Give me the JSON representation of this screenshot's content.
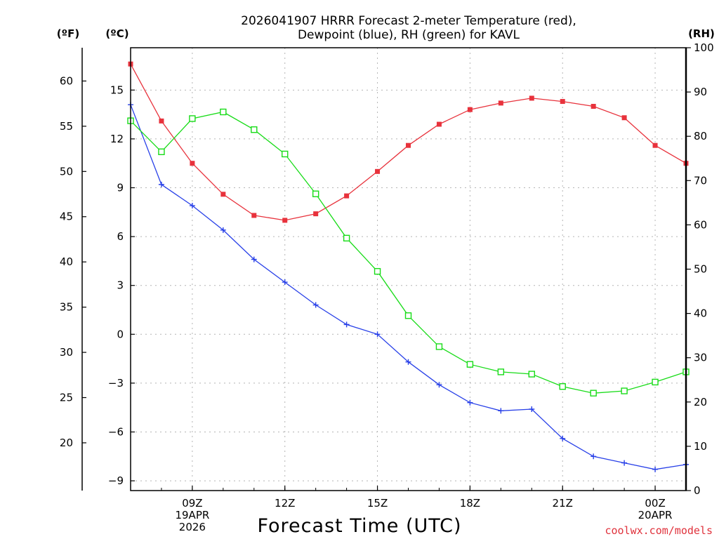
{
  "chart_data": {
    "type": "line",
    "title_lines": [
      "2026041907 HRRR Forecast 2-meter Temperature (red),",
      "Dewpoint (blue), RH (green) for KAVL"
    ],
    "xlabel": "Forecast Time (UTC)",
    "credit": "coolwx.com/models",
    "credit_color": "#e0323c",
    "x_hours": [
      7,
      8,
      9,
      10,
      11,
      12,
      13,
      14,
      15,
      16,
      17,
      18,
      19,
      20,
      21,
      22,
      23,
      24,
      25
    ],
    "xlim": [
      7,
      25
    ],
    "x_ticks": [
      {
        "hour": 9,
        "lines": [
          "09Z",
          "19APR",
          "2026"
        ]
      },
      {
        "hour": 12,
        "lines": [
          "12Z"
        ]
      },
      {
        "hour": 15,
        "lines": [
          "15Z"
        ]
      },
      {
        "hour": 18,
        "lines": [
          "18Z"
        ]
      },
      {
        "hour": 21,
        "lines": [
          "21Z"
        ]
      },
      {
        "hour": 24,
        "lines": [
          "00Z",
          "20APR"
        ]
      }
    ],
    "axis_c": {
      "unit_label": "(ºC)",
      "lim": [
        -9.6,
        17.6
      ],
      "ticks": [
        15,
        12,
        9,
        6,
        3,
        0,
        -3,
        -6,
        -9
      ],
      "tick_labels": [
        "15",
        "12",
        "9",
        "6",
        "3",
        "0",
        "−3",
        "−6",
        "−9"
      ]
    },
    "axis_f": {
      "unit_label": "(ºF)",
      "ticks": [
        60,
        55,
        50,
        45,
        40,
        35,
        30,
        25,
        20
      ],
      "tick_labels": [
        "60",
        "55",
        "50",
        "45",
        "40",
        "35",
        "30",
        "25",
        "20"
      ]
    },
    "axis_rh": {
      "unit_label": "(RH)",
      "lim": [
        0,
        100
      ],
      "ticks": [
        100,
        90,
        80,
        70,
        60,
        50,
        40,
        30,
        20,
        10,
        0
      ],
      "tick_labels": [
        "100",
        "90",
        "80",
        "70",
        "60",
        "50",
        "40",
        "30",
        "20",
        "10",
        "0"
      ]
    },
    "series": [
      {
        "name": "Temperature",
        "unit": "C",
        "color": "#e8323c",
        "marker": "filled-square",
        "values": [
          16.6,
          13.1,
          10.5,
          8.6,
          7.3,
          7.0,
          7.4,
          8.5,
          10.0,
          11.6,
          12.9,
          13.8,
          14.2,
          14.5,
          14.3,
          14.0,
          13.3,
          11.6,
          10.5
        ]
      },
      {
        "name": "Dewpoint",
        "unit": "C",
        "color": "#2840e8",
        "marker": "plus",
        "values": [
          14.1,
          9.2,
          7.9,
          6.4,
          4.6,
          3.2,
          1.8,
          0.6,
          0.0,
          -1.7,
          -3.1,
          -4.2,
          -4.7,
          -4.6,
          -6.4,
          -7.5,
          -7.9,
          -8.3,
          -8.0
        ]
      },
      {
        "name": "RH",
        "unit": "%",
        "color": "#18dc18",
        "marker": "open-square",
        "values": [
          83.5,
          76.5,
          84.0,
          85.5,
          81.5,
          76.0,
          67.0,
          57.0,
          49.5,
          39.5,
          32.5,
          28.5,
          26.8,
          26.3,
          23.5,
          22.0,
          22.5,
          24.5,
          26.8
        ]
      }
    ]
  }
}
